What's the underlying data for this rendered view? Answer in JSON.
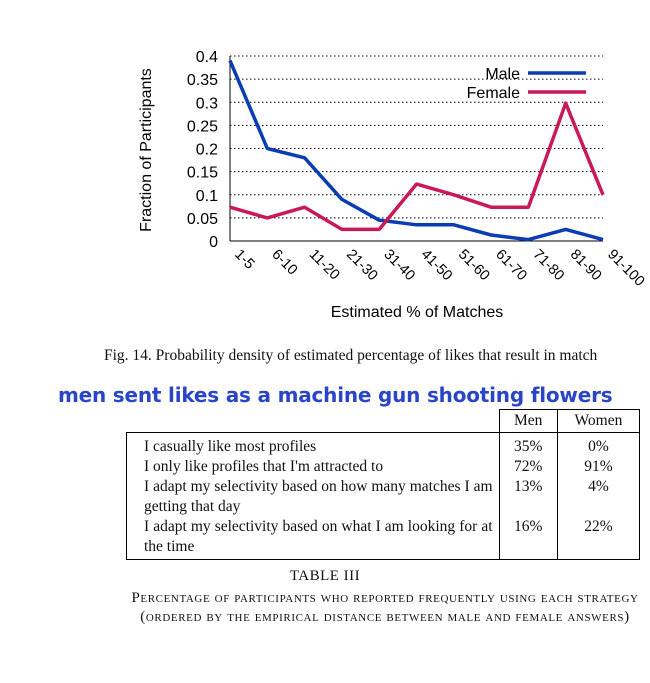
{
  "chart_data": {
    "type": "line",
    "categories": [
      "1-5",
      "6-10",
      "11-20",
      "21-30",
      "31-40",
      "41-50",
      "51-60",
      "61-70",
      "71-80",
      "81-90",
      "91-100"
    ],
    "series": [
      {
        "name": "Male",
        "color": "#0a3cb4",
        "values": [
          0.39,
          0.2,
          0.18,
          0.09,
          0.045,
          0.035,
          0.035,
          0.013,
          0.003,
          0.025,
          0.003
        ]
      },
      {
        "name": "Female",
        "color": "#c8195a",
        "values": [
          0.073,
          0.05,
          0.073,
          0.025,
          0.025,
          0.123,
          0.1,
          0.073,
          0.073,
          0.298,
          0.1
        ]
      }
    ],
    "ylabel": "Fraction of Participants",
    "xlabel": "Estimated % of Matches",
    "yticks": [
      "0",
      "0.05",
      "0.1",
      "0.15",
      "0.2",
      "0.25",
      "0.3",
      "0.35",
      "0.4"
    ],
    "ylim": [
      0,
      0.4
    ],
    "grid": "horizontal-dotted",
    "legend": "top-right"
  },
  "figure": {
    "caption_text": "Fig. 14.   Probability density of estimated percentage of likes that result in match"
  },
  "overlay_text": "men sent likes as a machine gun shooting flowers",
  "table": {
    "headers": {
      "men": "Men",
      "women": "Women"
    },
    "rows": [
      {
        "strategy": "I casually like most profiles",
        "men": "35%",
        "women": "0%"
      },
      {
        "strategy": "I only like profiles that I'm attracted to",
        "men": "72%",
        "women": "91%"
      },
      {
        "strategy": "I adapt my selectivity based on how many matches I am getting that day",
        "men": "13%",
        "women": "4%"
      },
      {
        "strategy": "I adapt my selectivity based on what I am looking for at the time",
        "men": "16%",
        "women": "22%"
      }
    ],
    "number": "TABLE III",
    "caption": "Percentage of participants who reported frequently using each strategy (ordered by the empirical distance between male and female answers)"
  }
}
